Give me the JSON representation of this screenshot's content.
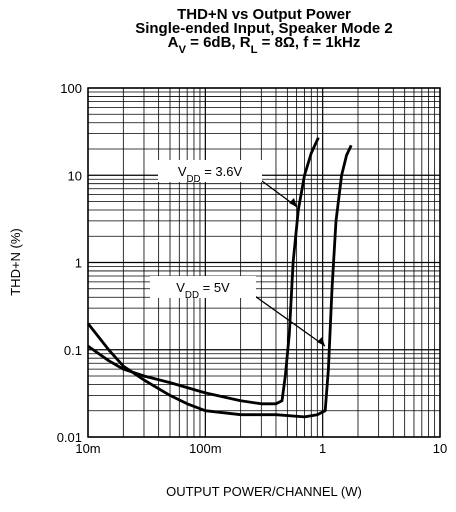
{
  "chart_data": {
    "type": "line",
    "title": [
      [
        {
          "text": "THD+N vs Output Power"
        }
      ],
      [
        {
          "text": "Single-ended Input, Speaker Mode 2"
        }
      ],
      [
        {
          "text": "A"
        },
        {
          "text": "V",
          "sub": true
        },
        {
          "text": " = 6dB, R"
        },
        {
          "text": "L",
          "sub": true
        },
        {
          "text": " = 8Ω, f = 1kHz"
        }
      ]
    ],
    "x_label": "OUTPUT POWER/CHANNEL (W)",
    "y_label": "THD+N (%)",
    "xscale": "log",
    "yscale": "log",
    "xlim": [
      0.01,
      10
    ],
    "ylim": [
      0.01,
      100
    ],
    "xticks": [
      {
        "value": 0.01,
        "label": "10m"
      },
      {
        "value": 0.1,
        "label": "100m"
      },
      1,
      10
    ],
    "yticks": [
      0.01,
      0.1,
      1,
      10,
      100
    ],
    "grid": true,
    "minor_grid": true,
    "series": [
      {
        "name": [
          {
            "text": "V"
          },
          {
            "text": "DD",
            "sub": true
          },
          {
            "text": " = 3.6V"
          }
        ],
        "color": "#000000",
        "x": [
          0.01,
          0.015,
          0.02,
          0.03,
          0.05,
          0.1,
          0.2,
          0.3,
          0.4,
          0.45,
          0.48,
          0.52,
          0.56,
          0.62,
          0.7,
          0.8,
          0.92
        ],
        "values": [
          0.11,
          0.075,
          0.06,
          0.05,
          0.042,
          0.032,
          0.026,
          0.024,
          0.024,
          0.026,
          0.05,
          0.15,
          1,
          4,
          10,
          18,
          27
        ]
      },
      {
        "name": [
          {
            "text": "V"
          },
          {
            "text": "DD",
            "sub": true
          },
          {
            "text": " = 5V"
          }
        ],
        "color": "#000000",
        "x": [
          0.01,
          0.015,
          0.02,
          0.03,
          0.05,
          0.07,
          0.1,
          0.2,
          0.4,
          0.7,
          0.9,
          1.05,
          1.12,
          1.2,
          1.3,
          1.45,
          1.6,
          1.75
        ],
        "values": [
          0.2,
          0.1,
          0.065,
          0.045,
          0.03,
          0.024,
          0.02,
          0.018,
          0.018,
          0.017,
          0.018,
          0.02,
          0.06,
          0.5,
          3,
          10,
          17,
          22
        ]
      }
    ]
  }
}
